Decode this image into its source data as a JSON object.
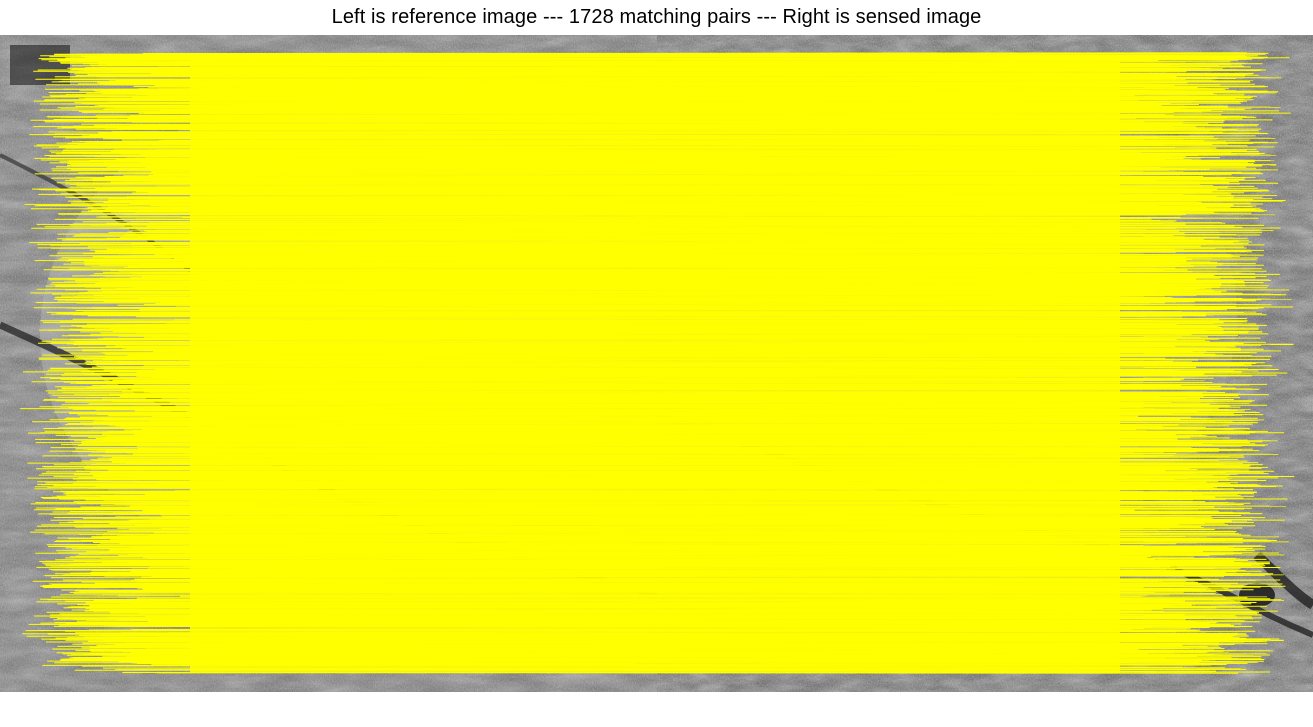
{
  "figure": {
    "title": "Left is reference image --- 1728 matching pairs --- Right is sensed image"
  },
  "panels": [
    {
      "role": "reference",
      "icon": "grayscale-satellite-image"
    },
    {
      "role": "sensed",
      "icon": "grayscale-satellite-image"
    }
  ],
  "matches": {
    "count": 1728,
    "line_color": "#ffff00"
  }
}
